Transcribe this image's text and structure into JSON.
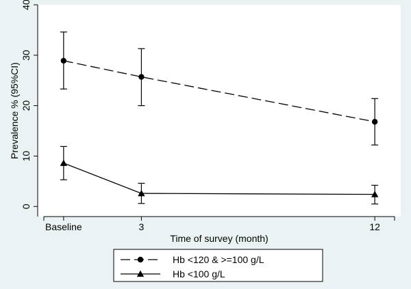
{
  "chart_data": {
    "type": "line",
    "xlabel": "Time of survey (month)",
    "ylabel": "Prevalence % (95%CI)",
    "x_ticks": [
      {
        "x": 0,
        "label": "Baseline"
      },
      {
        "x": 3,
        "label": "3"
      },
      {
        "x": 12,
        "label": "12"
      }
    ],
    "xlim": [
      -1,
      13
    ],
    "ylim": [
      -2,
      40
    ],
    "y_ticks": [
      0,
      10,
      20,
      30,
      40
    ],
    "grid": false,
    "legend_position": "bottom",
    "series": [
      {
        "name": "Hb <120 & >=100 g/L",
        "line_style": "dashed",
        "marker": "circle",
        "color": "#000000",
        "points": [
          {
            "x": 0,
            "y": 28.9,
            "lo": 23.3,
            "hi": 34.6
          },
          {
            "x": 3,
            "y": 25.7,
            "lo": 20.0,
            "hi": 31.3
          },
          {
            "x": 12,
            "y": 16.8,
            "lo": 12.2,
            "hi": 21.4
          }
        ]
      },
      {
        "name": "Hb <100 g/L",
        "line_style": "solid",
        "marker": "triangle",
        "color": "#000000",
        "points": [
          {
            "x": 0,
            "y": 8.6,
            "lo": 5.3,
            "hi": 11.9
          },
          {
            "x": 3,
            "y": 2.6,
            "lo": 0.6,
            "hi": 4.6
          },
          {
            "x": 12,
            "y": 2.4,
            "lo": 0.5,
            "hi": 4.2
          }
        ]
      }
    ]
  }
}
